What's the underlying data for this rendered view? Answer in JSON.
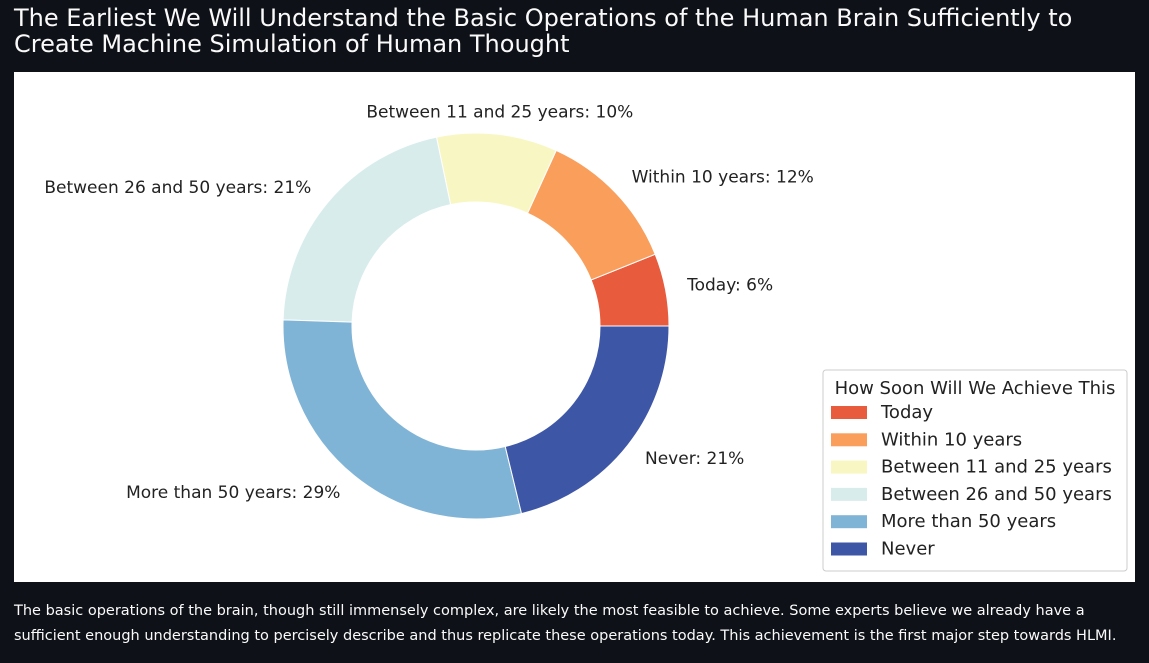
{
  "page": {
    "title": "The Earliest We Will Understand the Basic Operations of the Human Brain Sufficiently to Create Machine Simulation of Human Thought",
    "caption": "The basic operations of the brain, though still immensely complex, are likely the most feasible to achieve. Some experts believe we already have a sufficient enough understanding to percisely describe and thus replicate these operations today. This achievement is the first major step towards HLMI."
  },
  "chart_data": {
    "type": "pie",
    "variant": "donut",
    "legend_title": "How Soon Will We Achieve This",
    "legend_position": "bottom-right",
    "slices": [
      {
        "name": "Today",
        "value": 6,
        "label": "Today: 6%",
        "color": "#e85b3d"
      },
      {
        "name": "Within 10 years",
        "value": 12,
        "label": "Within 10 years: 12%",
        "color": "#f99e5b"
      },
      {
        "name": "Between 11 and 25 years",
        "value": 10,
        "label": "Between 11 and 25 years: 10%",
        "color": "#f8f7c3"
      },
      {
        "name": "Between 26 and 50 years",
        "value": 21,
        "label": "Between 26 and 50 years: 21%",
        "color": "#d8ecec"
      },
      {
        "name": "More than 50 years",
        "value": 29,
        "label": "More than 50 years: 29%",
        "color": "#80b4d6"
      },
      {
        "name": "Never",
        "value": 21,
        "label": "Never: 21%",
        "color": "#3e56a6"
      }
    ]
  }
}
